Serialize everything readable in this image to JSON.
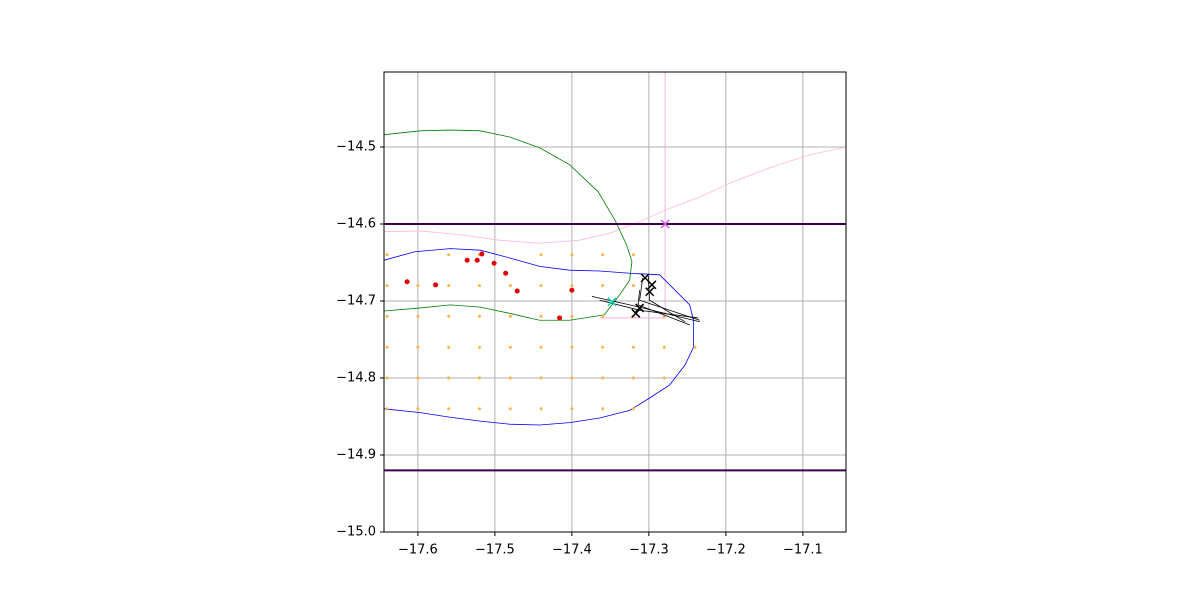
{
  "chart_data": {
    "type": "line",
    "xlim": [
      -17.644,
      -17.044
    ],
    "ylim": [
      -15.0,
      -14.4026
    ],
    "xticks": [
      {
        "value": -17.6,
        "label": "−17.6"
      },
      {
        "value": -17.5,
        "label": "−17.5"
      },
      {
        "value": -17.4,
        "label": "−17.4"
      },
      {
        "value": -17.3,
        "label": "−17.3"
      },
      {
        "value": -17.2,
        "label": "−17.2"
      },
      {
        "value": -17.1,
        "label": "−17.1"
      }
    ],
    "yticks": [
      {
        "value": -14.5,
        "label": "−14.5"
      },
      {
        "value": -14.6,
        "label": "−14.6"
      },
      {
        "value": -14.7,
        "label": "−14.7"
      },
      {
        "value": -14.8,
        "label": "−14.8"
      },
      {
        "value": -14.9,
        "label": "−14.9"
      },
      {
        "value": -15.0,
        "label": "−15.0"
      }
    ],
    "grid": true,
    "series": [
      {
        "mode": "line",
        "color": "#ffb6e0",
        "x": [
          -17.644,
          -17.597,
          -17.545,
          -17.494,
          -17.442,
          -17.39,
          -17.351,
          -17.312,
          -17.279,
          -17.234,
          -17.195,
          -17.143,
          -17.091,
          -17.044
        ],
        "values": [
          -14.61,
          -14.609,
          -14.614,
          -14.621,
          -14.625,
          -14.621,
          -14.612,
          -14.597,
          -14.582,
          -14.565,
          -14.547,
          -14.527,
          -14.51,
          -14.5
        ]
      },
      {
        "mode": "line",
        "color": "#f0a0e0",
        "x": [
          -17.279,
          -17.279,
          -17.364
        ],
        "values": [
          -14.4026,
          -14.722,
          -14.722
        ]
      },
      {
        "mode": "line",
        "color": "#008000",
        "x": [
          -17.644,
          -17.597,
          -17.558,
          -17.519,
          -17.481,
          -17.442,
          -17.403,
          -17.366,
          -17.344,
          -17.329,
          -17.322,
          -17.325,
          -17.338,
          -17.358,
          -17.403,
          -17.442,
          -17.481,
          -17.519,
          -17.558,
          -17.597,
          -17.644
        ],
        "values": [
          -14.484,
          -14.479,
          -14.478,
          -14.479,
          -14.487,
          -14.501,
          -14.523,
          -14.558,
          -14.595,
          -14.627,
          -14.649,
          -14.673,
          -14.692,
          -14.718,
          -14.725,
          -14.725,
          -14.716,
          -14.708,
          -14.705,
          -14.709,
          -14.713
        ]
      },
      {
        "mode": "line",
        "color": "#0000ff",
        "x": [
          -17.644,
          -17.604,
          -17.558,
          -17.519,
          -17.481,
          -17.442,
          -17.403,
          -17.364,
          -17.325,
          -17.286,
          -17.266,
          -17.247,
          -17.242,
          -17.242,
          -17.253,
          -17.273,
          -17.299,
          -17.325,
          -17.364,
          -17.403,
          -17.442,
          -17.481,
          -17.519,
          -17.558,
          -17.597,
          -17.644
        ],
        "values": [
          -14.647,
          -14.636,
          -14.632,
          -14.634,
          -14.644,
          -14.655,
          -14.66,
          -14.661,
          -14.664,
          -14.666,
          -14.686,
          -14.705,
          -14.725,
          -14.76,
          -14.783,
          -14.809,
          -14.826,
          -14.842,
          -14.852,
          -14.858,
          -14.861,
          -14.86,
          -14.856,
          -14.851,
          -14.845,
          -14.84
        ]
      },
      {
        "mode": "line",
        "color": "#3b0050",
        "width": 2,
        "x": [
          -17.644,
          -17.044
        ],
        "values": [
          -14.6,
          -14.6
        ]
      },
      {
        "mode": "line",
        "color": "#3b0050",
        "width": 2,
        "x": [
          -17.644,
          -17.044
        ],
        "values": [
          -14.92,
          -14.92
        ]
      },
      {
        "mode": "points",
        "color": "#ffb347",
        "size": 1.5,
        "x": [
          -17.64,
          -17.56,
          -17.52,
          -17.44,
          -17.4,
          -17.36,
          -17.32,
          -17.64,
          -17.6,
          -17.56,
          -17.52,
          -17.48,
          -17.44,
          -17.4,
          -17.36,
          -17.32,
          -17.64,
          -17.6,
          -17.56,
          -17.52,
          -17.48,
          -17.44,
          -17.4,
          -17.36,
          -17.32,
          -17.28,
          -17.64,
          -17.6,
          -17.56,
          -17.52,
          -17.48,
          -17.44,
          -17.4,
          -17.36,
          -17.32,
          -17.28,
          -17.24,
          -17.64,
          -17.6,
          -17.56,
          -17.52,
          -17.48,
          -17.44,
          -17.4,
          -17.36,
          -17.32,
          -17.28,
          -17.64,
          -17.6,
          -17.56,
          -17.52,
          -17.48,
          -17.44,
          -17.4,
          -17.36,
          -17.32
        ],
        "values": [
          -14.64,
          -14.64,
          -14.64,
          -14.64,
          -14.64,
          -14.64,
          -14.64,
          -14.68,
          -14.68,
          -14.68,
          -14.68,
          -14.68,
          -14.68,
          -14.68,
          -14.68,
          -14.68,
          -14.72,
          -14.72,
          -14.72,
          -14.72,
          -14.72,
          -14.72,
          -14.72,
          -14.72,
          -14.72,
          -14.72,
          -14.76,
          -14.76,
          -14.76,
          -14.76,
          -14.76,
          -14.76,
          -14.76,
          -14.76,
          -14.76,
          -14.76,
          -14.76,
          -14.8,
          -14.8,
          -14.8,
          -14.8,
          -14.8,
          -14.8,
          -14.8,
          -14.8,
          -14.8,
          -14.8,
          -14.84,
          -14.84,
          -14.84,
          -14.84,
          -14.84,
          -14.84,
          -14.84,
          -14.84,
          -14.84
        ]
      },
      {
        "mode": "points",
        "color": "#e00000",
        "size": 2.5,
        "x": [
          -17.614,
          -17.577,
          -17.536,
          -17.523,
          -17.517,
          -17.501,
          -17.486,
          -17.471,
          -17.416,
          -17.4
        ],
        "values": [
          -14.675,
          -14.679,
          -14.647,
          -14.647,
          -14.639,
          -14.651,
          -14.664,
          -14.687,
          -14.722,
          -14.686
        ]
      },
      {
        "mode": "line",
        "color": "#000000",
        "x": [
          -17.374,
          -17.325,
          -17.234
        ],
        "values": [
          -14.694,
          -14.705,
          -14.727
        ]
      },
      {
        "mode": "line",
        "color": "#000000",
        "x": [
          -17.364,
          -17.312,
          -17.236
        ],
        "values": [
          -14.699,
          -14.712,
          -14.722
        ]
      },
      {
        "mode": "line",
        "color": "#000000",
        "x": [
          -17.312,
          -17.314,
          -17.247
        ],
        "values": [
          -14.686,
          -14.705,
          -14.731
        ]
      },
      {
        "mode": "line",
        "color": "#000000",
        "x": [
          -17.308,
          -17.312,
          -17.234
        ],
        "values": [
          -14.67,
          -14.699,
          -14.725
        ]
      },
      {
        "mode": "line",
        "color": "#000000",
        "x": [
          -17.301,
          -17.299,
          -17.253
        ],
        "values": [
          -14.666,
          -14.699,
          -14.727
        ]
      },
      {
        "mode": "cross",
        "color": "#000000",
        "x": [
          -17.305,
          -17.296,
          -17.312,
          -17.317,
          -17.299
        ],
        "values": [
          -14.67,
          -14.679,
          -14.709,
          -14.716,
          -14.688
        ]
      },
      {
        "mode": "cross",
        "color": "#00d0c0",
        "x": [
          -17.348
        ],
        "values": [
          -14.701
        ]
      },
      {
        "mode": "cross",
        "color": "#d060e0",
        "x": [
          -17.279
        ],
        "values": [
          -14.6
        ]
      }
    ]
  }
}
